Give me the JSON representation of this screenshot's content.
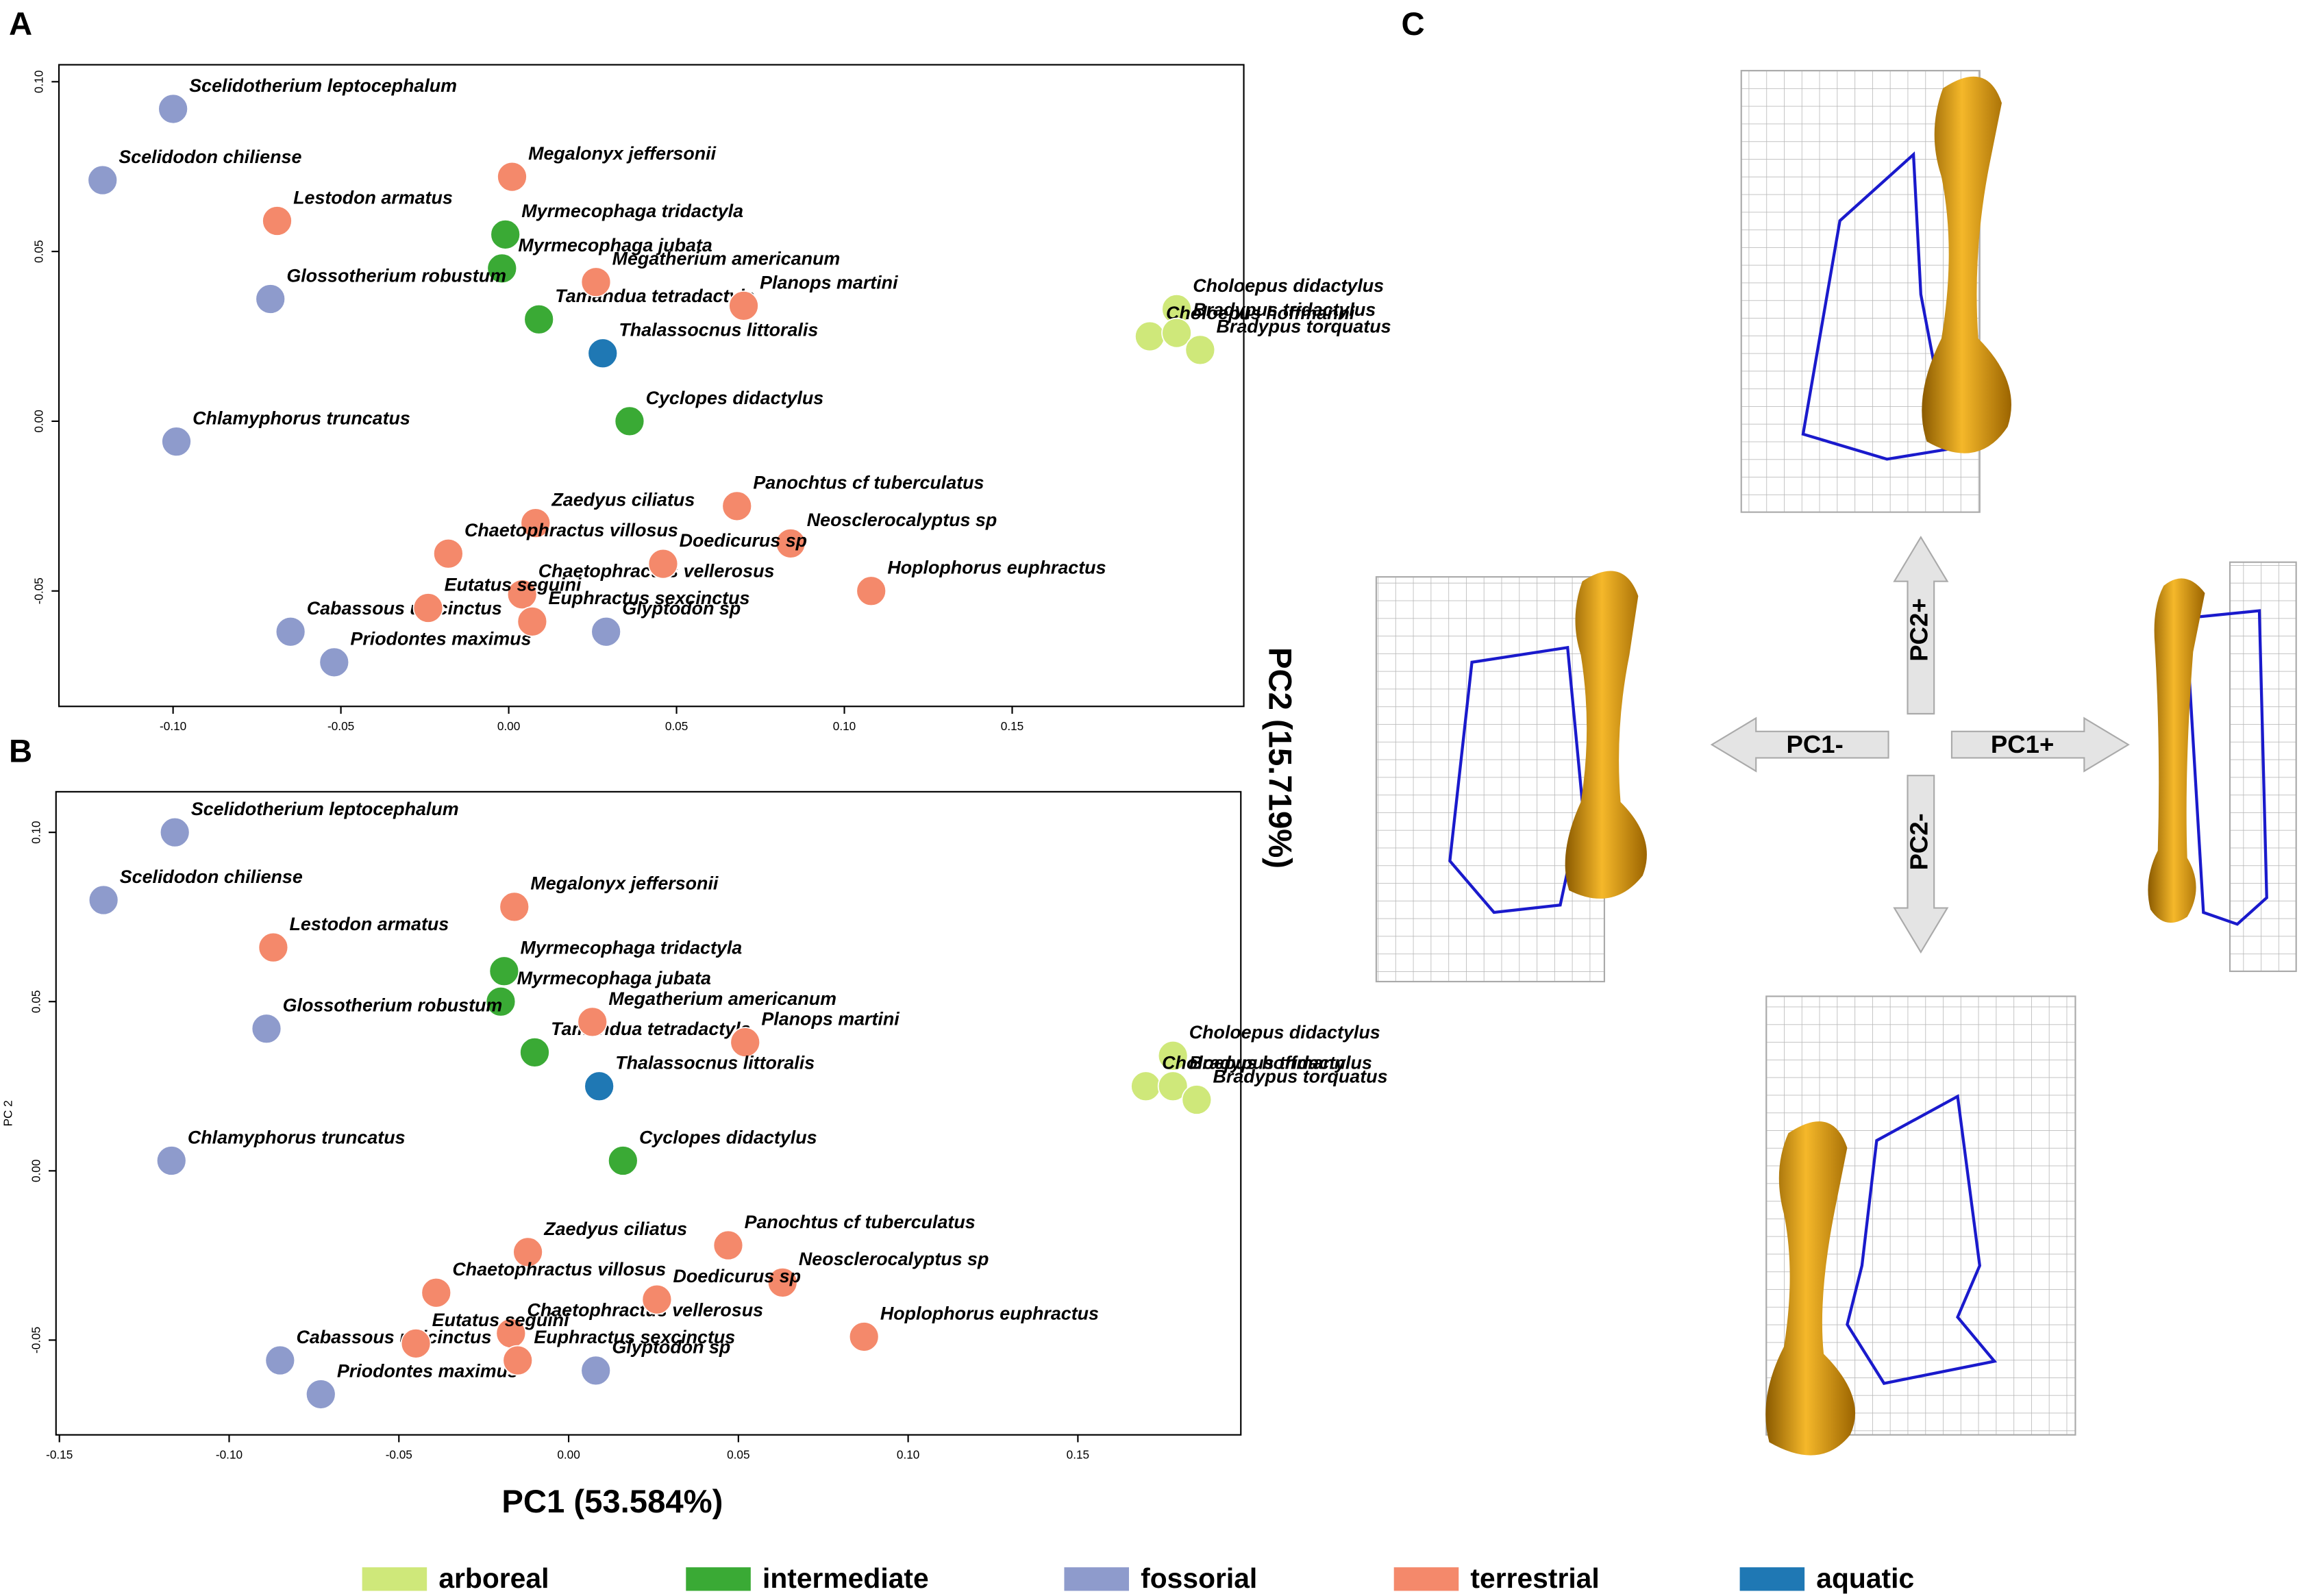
{
  "axis_labels": {
    "x": "PC1 (53.584%)",
    "y": "PC2 (15.719%)"
  },
  "chart_data": [
    {
      "type": "scatter",
      "panel": "A",
      "xlim": [
        -0.134,
        0.219
      ],
      "ylim": [
        -0.084,
        0.105
      ],
      "xticks": [
        {
          "value": -0.1,
          "label": "-0.10"
        },
        -0.05,
        {
          "value": 0,
          "label": "0.00"
        },
        0.05,
        {
          "value": 0.1,
          "label": "0.10"
        },
        0.15
      ],
      "yticks": [
        {
          "value": 0.1,
          "label": "0.10"
        },
        0.05,
        {
          "value": 0,
          "label": "0.00"
        },
        -0.05
      ],
      "series": [
        {
          "name": "arboreal",
          "color": "#cfe87a",
          "labels": [
            "Choloepus didactylus",
            "Choloepus hoffmanni",
            "Bradypus tridactylus",
            "Bradypus torquatus"
          ],
          "x": [
            0.199,
            0.191,
            0.199,
            0.206
          ],
          "values": [
            0.033,
            0.025,
            0.026,
            0.021
          ]
        },
        {
          "name": "intermediate",
          "color": "#3aaa35",
          "labels": [
            "Myrmecophaga tridactyla",
            "Myrmecophaga jubata",
            "Tamandua tetradactyla",
            "Cyclopes didactylus"
          ],
          "x": [
            -0.001,
            -0.002,
            0.009,
            0.036
          ],
          "values": [
            0.055,
            0.045,
            0.03,
            0.0
          ]
        },
        {
          "name": "fossorial",
          "color": "#8e9bcc",
          "labels": [
            "Scelidotherium leptocephalum",
            "Scelidodon chiliense",
            "Glossotherium robustum",
            "Chlamyphorus truncatus",
            "Glyptodon sp",
            "Cabassous unicinctus",
            "Priodontes maximus"
          ],
          "x": [
            -0.1,
            -0.121,
            -0.071,
            -0.099,
            0.029,
            -0.065,
            -0.052
          ],
          "values": [
            0.092,
            0.071,
            0.036,
            -0.006,
            -0.062,
            -0.062,
            -0.071
          ]
        },
        {
          "name": "terrestrial",
          "color": "#f4896b",
          "labels": [
            "Lestodon armatus",
            "Megalonyx jeffersonii",
            "Megatherium americanum",
            "Planops martini",
            "Zaedyus ciliatus",
            "Panochtus cf tuberculatus",
            "Neosclerocalyptus sp",
            "Chaetophractus villosus",
            "Chaetophractus vellerosus",
            "Doedicurus sp",
            "Hoplophorus euphractus",
            "Eutatus seguini",
            "Euphractus sexcinctus"
          ],
          "x": [
            -0.069,
            0.001,
            0.026,
            0.07,
            0.008,
            0.068,
            0.084,
            -0.018,
            0.004,
            0.046,
            0.108,
            -0.024,
            0.007
          ],
          "values": [
            0.059,
            0.072,
            0.041,
            0.034,
            -0.03,
            -0.025,
            -0.036,
            -0.039,
            -0.051,
            -0.042,
            -0.05,
            -0.055,
            -0.059
          ]
        },
        {
          "name": "aquatic",
          "color": "#1f78b4",
          "labels": [
            "Thalassocnus littoralis"
          ],
          "x": [
            0.028
          ],
          "values": [
            0.02
          ]
        }
      ]
    },
    {
      "type": "scatter",
      "panel": "B",
      "ylabel": "PC 2",
      "xlim": [
        -0.151,
        0.198
      ],
      "ylim": [
        -0.078,
        0.112
      ],
      "xticks": [
        -0.15,
        {
          "value": -0.1,
          "label": "-0.10"
        },
        -0.05,
        {
          "value": 0,
          "label": "0.00"
        },
        0.05,
        {
          "value": 0.1,
          "label": "0.10"
        },
        0.15
      ],
      "yticks": [
        {
          "value": 0.1,
          "label": "0.10"
        },
        0.05,
        {
          "value": 0,
          "label": "0.00"
        },
        -0.05
      ],
      "series": [
        {
          "name": "arboreal",
          "color": "#cfe87a",
          "labels": [
            "Choloepus didactylus",
            "Choloepus hoffmanni",
            "Bradypus tridactylus",
            "Bradypus torquatus"
          ],
          "x": [
            0.178,
            0.17,
            0.178,
            0.185
          ],
          "values": [
            0.034,
            0.025,
            0.025,
            0.021
          ]
        },
        {
          "name": "intermediate",
          "color": "#3aaa35",
          "labels": [
            "Myrmecophaga tridactyla",
            "Myrmecophaga jubata",
            "Tamandua tetradactyla",
            "Cyclopes didactylus"
          ],
          "x": [
            -0.019,
            -0.02,
            -0.01,
            0.016
          ],
          "values": [
            0.059,
            0.05,
            0.035,
            0.003
          ]
        },
        {
          "name": "fossorial",
          "color": "#8e9bcc",
          "labels": [
            "Scelidotherium leptocephalum",
            "Scelidodon chiliense",
            "Glossotherium robustum",
            "Chlamyphorus truncatus",
            "Glyptodon sp",
            "Cabassous unicinctus",
            "Priodontes maximus"
          ],
          "x": [
            -0.116,
            -0.137,
            -0.089,
            -0.117,
            0.008,
            -0.085,
            -0.073
          ],
          "values": [
            0.1,
            0.08,
            0.042,
            0.003,
            -0.059,
            -0.056,
            -0.066
          ]
        },
        {
          "name": "terrestrial",
          "color": "#f4896b",
          "labels": [
            "Lestodon armatus",
            "Megalonyx jeffersonii",
            "Megatherium americanum",
            "Planops martini",
            "Zaedyus ciliatus",
            "Panochtus cf tuberculatus",
            "Neosclerocalyptus sp",
            "Chaetophractus villosus",
            "Chaetophractus vellerosus",
            "Doedicurus sp",
            "Hoplophorus euphractus",
            "Eutatus seguini",
            "Euphractus sexcinctus"
          ],
          "x": [
            -0.087,
            -0.016,
            0.007,
            0.052,
            -0.012,
            0.047,
            0.063,
            -0.039,
            -0.017,
            0.026,
            0.087,
            -0.045,
            -0.015
          ],
          "values": [
            0.066,
            0.078,
            0.044,
            0.038,
            -0.024,
            -0.022,
            -0.033,
            -0.036,
            -0.048,
            -0.038,
            -0.049,
            -0.051,
            -0.056
          ]
        },
        {
          "name": "aquatic",
          "color": "#1f78b4",
          "labels": [
            "Thalassocnus littoralis"
          ],
          "x": [
            0.009
          ],
          "values": [
            0.025
          ]
        }
      ]
    }
  ],
  "panel_c": {
    "label": "C",
    "arrows": [
      "PC2+",
      "PC1-",
      "PC1+",
      "PC2-"
    ]
  }
}
